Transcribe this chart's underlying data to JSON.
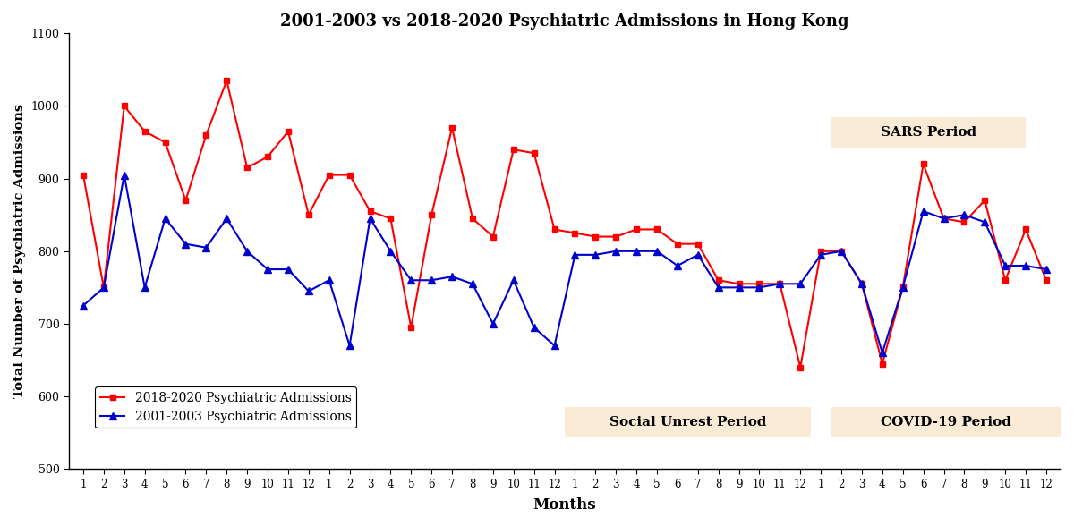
{
  "title": "2001-2003 vs 2018-2020 Psychiatric Admissions in Hong Kong",
  "xlabel": "Months",
  "ylabel": "Total Number of Psychiatric Admissions",
  "ylim": [
    500,
    1100
  ],
  "yticks": [
    500,
    600,
    700,
    800,
    900,
    1000,
    1100
  ],
  "red_label": "2018-2020 Psychiatric Admissions",
  "blue_label": "2001-2003 Psychiatric Admissions",
  "red_color": "#FF0000",
  "blue_color": "#0000CC",
  "background_color": "#FFFFFF",
  "red_data": [
    905,
    750,
    1000,
    965,
    950,
    870,
    960,
    1035,
    915,
    930,
    965,
    850,
    905,
    905,
    855,
    845,
    695,
    850,
    970,
    845,
    820,
    940,
    935,
    830,
    825,
    820,
    820,
    830,
    830,
    810,
    810,
    760,
    755,
    755,
    755,
    640,
    800,
    800,
    755,
    645,
    750,
    920,
    845,
    840,
    870,
    760,
    830,
    760
  ],
  "blue_data": [
    725,
    750,
    905,
    750,
    845,
    810,
    805,
    845,
    800,
    775,
    775,
    745,
    760,
    670,
    845,
    800,
    760,
    760,
    765,
    755,
    700,
    760,
    695,
    670,
    795,
    795,
    800,
    800,
    800,
    780,
    795,
    750,
    750,
    750,
    755,
    755,
    795,
    800,
    755,
    660,
    750,
    855,
    845,
    850,
    840,
    780,
    780,
    775
  ],
  "sars_label": "SARS Period",
  "social_unrest_label": "Social Unrest Period",
  "covid_label": "COVID-19 Period",
  "n_points": 48,
  "xtick_labels": [
    "1",
    "2",
    "3",
    "4",
    "5",
    "6",
    "7",
    "8",
    "9",
    "10",
    "11",
    "12",
    "1",
    "2",
    "3",
    "4",
    "5",
    "6",
    "7",
    "8",
    "9",
    "10",
    "11",
    "12",
    "1",
    "2",
    "3",
    "4",
    "5",
    "6",
    "7",
    "8",
    "9",
    "10",
    "11",
    "12",
    "1",
    "2",
    "3",
    "4",
    "5",
    "6",
    "7",
    "8",
    "9",
    "10",
    "11",
    "12"
  ],
  "box_color": "#FAEBD7"
}
